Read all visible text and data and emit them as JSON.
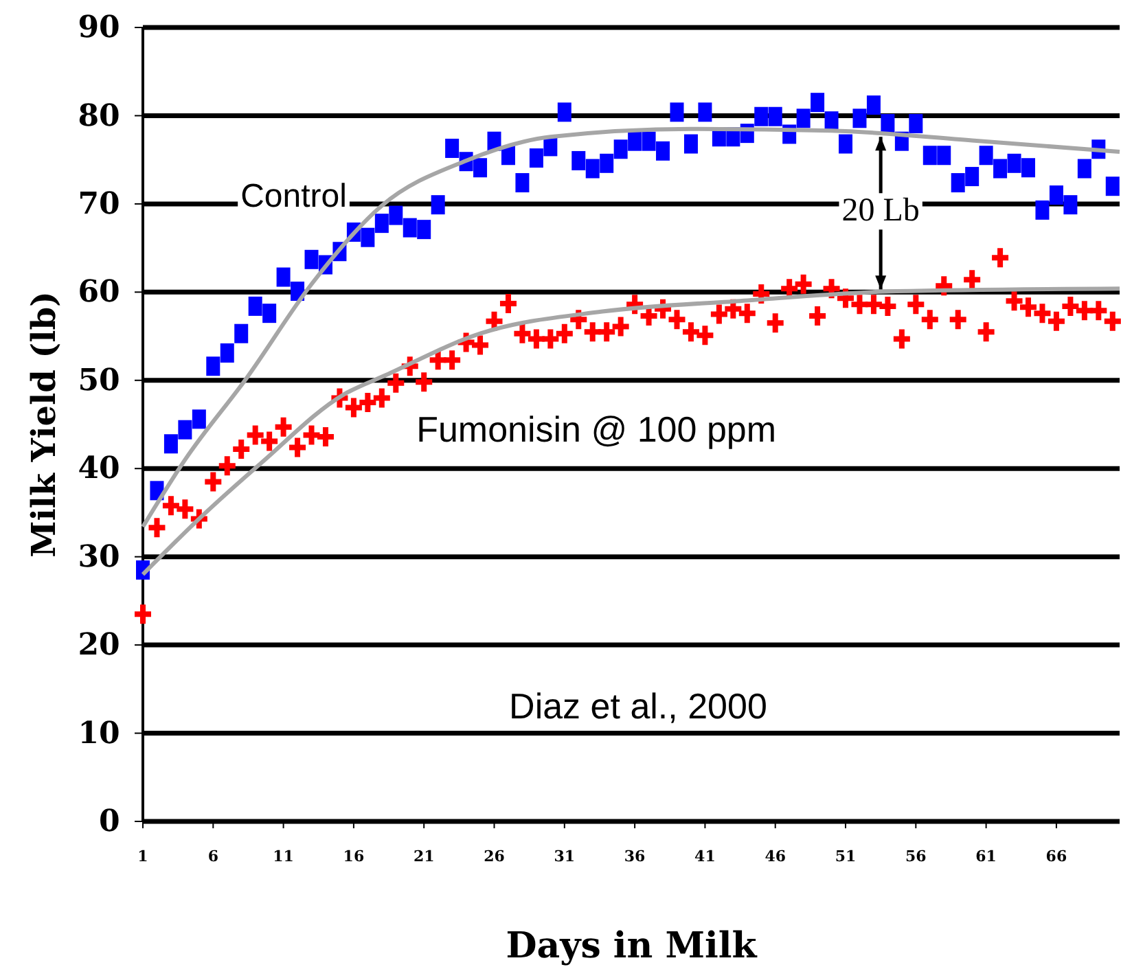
{
  "chart_data": {
    "type": "scatter",
    "xlabel": "Days in Milk",
    "ylabel": "Milk Yield (lb)",
    "xlim": [
      1,
      70.5
    ],
    "xticks": [
      1,
      6,
      11,
      16,
      21,
      26,
      31,
      36,
      41,
      46,
      51,
      56,
      61,
      66
    ],
    "ylim": [
      0,
      90
    ],
    "yticks": [
      0,
      10,
      20,
      30,
      40,
      50,
      60,
      70,
      80,
      90
    ],
    "grid": "y",
    "x": [
      1,
      2,
      3,
      4,
      5,
      6,
      7,
      8,
      9,
      10,
      11,
      12,
      13,
      14,
      15,
      16,
      17,
      18,
      19,
      20,
      21,
      22,
      23,
      24,
      25,
      26,
      27,
      28,
      29,
      30,
      31,
      32,
      33,
      34,
      35,
      36,
      37,
      38,
      39,
      40,
      41,
      42,
      43,
      44,
      45,
      46,
      47,
      48,
      49,
      50,
      51,
      52,
      53,
      54,
      55,
      56,
      57,
      58,
      59,
      60,
      61,
      62,
      63,
      64,
      65,
      66,
      67,
      68,
      69,
      70
    ],
    "series": [
      {
        "name": "Control",
        "color": "#0000ff",
        "marker": "square",
        "values": [
          28.5,
          37.5,
          42.8,
          44.4,
          45.6,
          51.6,
          53.1,
          55.3,
          58.4,
          57.6,
          61.7,
          60.1,
          63.7,
          63.1,
          64.6,
          66.8,
          66.2,
          67.8,
          68.7,
          67.3,
          67.1,
          69.9,
          76.3,
          74.8,
          74.1,
          77.1,
          75.5,
          72.4,
          75.2,
          76.5,
          80.4,
          74.9,
          74.0,
          74.6,
          76.2,
          77.1,
          77.1,
          76.0,
          80.4,
          76.8,
          80.4,
          77.6,
          77.6,
          78.0,
          79.9,
          79.9,
          77.9,
          79.7,
          81.5,
          79.4,
          76.8,
          79.7,
          81.2,
          79.1,
          77.1,
          79.1,
          75.5,
          75.5,
          72.4,
          73.1,
          75.5,
          74.0,
          74.6,
          74.1,
          69.3,
          71.0,
          69.9,
          74.0,
          76.2,
          72.0
        ]
      },
      {
        "name": "Fumonisin @ 100 ppm",
        "color": "#ff0000",
        "marker": "cross",
        "values": [
          23.5,
          33.3,
          35.8,
          35.4,
          34.3,
          38.5,
          40.3,
          42.2,
          43.8,
          43.1,
          44.7,
          42.4,
          43.8,
          43.6,
          48.0,
          46.9,
          47.5,
          48.0,
          49.7,
          51.6,
          49.8,
          52.3,
          52.3,
          54.3,
          54.0,
          56.7,
          58.7,
          55.3,
          54.7,
          54.7,
          55.3,
          56.9,
          55.5,
          55.5,
          56.1,
          58.6,
          57.3,
          58.1,
          56.9,
          55.5,
          55.1,
          57.5,
          58.1,
          57.6,
          59.8,
          56.5,
          60.4,
          60.9,
          57.3,
          60.4,
          59.3,
          58.6,
          58.6,
          58.4,
          54.7,
          58.6,
          56.9,
          60.7,
          56.9,
          61.4,
          55.5,
          63.9,
          59.0,
          58.3,
          57.6,
          56.7,
          58.4,
          57.9,
          57.9,
          56.7
        ]
      },
      {
        "type": "line",
        "color": "#a6a6a6",
        "x": [
          1,
          4,
          8.4,
          13,
          18,
          24,
          30,
          40,
          50,
          60,
          70.5
        ],
        "values": [
          33.4,
          41,
          50.3,
          60.9,
          69.8,
          74.9,
          77.6,
          78.5,
          78.3,
          77.2,
          75.9
        ]
      },
      {
        "type": "line",
        "color": "#a6a6a6",
        "x": [
          1,
          5,
          9.4,
          15.3,
          18.3,
          25,
          33.7,
          43.5,
          54.6,
          70.5
        ],
        "values": [
          28,
          34.3,
          40.6,
          48.4,
          50.6,
          55.3,
          57.8,
          59.0,
          60.1,
          60.4
        ]
      }
    ],
    "annotations": [
      {
        "text": "20 Lb",
        "x": 53.5,
        "y": 60
      },
      "Diaz et al., 2000"
    ]
  }
}
